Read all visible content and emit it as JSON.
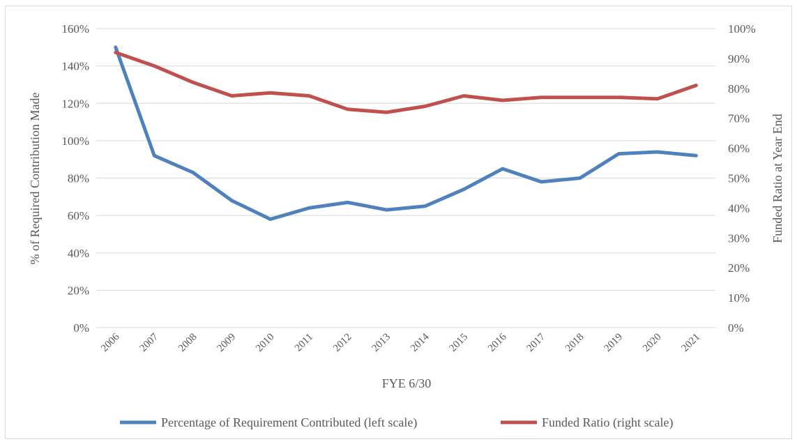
{
  "chart_data": {
    "type": "line",
    "title": "",
    "xlabel": "FYE 6/30",
    "ylabel_left": "% of Required Contribution Made",
    "ylabel_right": "Funded Ratio at Year End",
    "categories": [
      "2006",
      "2007",
      "2008",
      "2009",
      "2010",
      "2011",
      "2012",
      "2013",
      "2014",
      "2015",
      "2016",
      "2017",
      "2018",
      "2019",
      "2020",
      "2021"
    ],
    "y_left": {
      "min": 0,
      "max": 160,
      "step": 20,
      "tick_labels": [
        "0%",
        "20%",
        "40%",
        "60%",
        "80%",
        "100%",
        "120%",
        "140%",
        "160%"
      ]
    },
    "y_right": {
      "min": 0,
      "max": 100,
      "step": 10,
      "tick_labels": [
        "0%",
        "10%",
        "20%",
        "30%",
        "40%",
        "50%",
        "60%",
        "70%",
        "80%",
        "90%",
        "100%"
      ]
    },
    "grid": "horizontal",
    "legend_position": "bottom",
    "series": [
      {
        "name": "Percentage of Requirement Contributed (left scale)",
        "axis": "left",
        "color": "#4f81bd",
        "values": [
          150,
          92,
          83,
          68,
          58,
          64,
          67,
          63,
          65,
          74,
          85,
          78,
          80,
          93,
          94,
          92
        ]
      },
      {
        "name": "Funded Ratio (right scale)",
        "axis": "right",
        "color": "#c0504d",
        "values": [
          92,
          87.5,
          82,
          77.5,
          78.5,
          77.5,
          73,
          72,
          74,
          77.5,
          76,
          77,
          77,
          77,
          76.5,
          81
        ]
      }
    ]
  }
}
